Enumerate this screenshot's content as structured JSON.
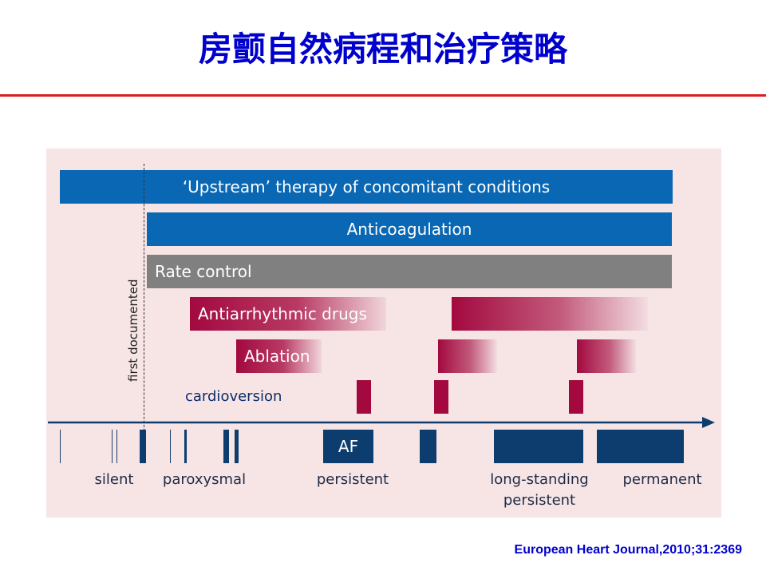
{
  "title": "房颤自然病程和治疗策略",
  "diagram": {
    "bars": {
      "upstream": "‘Upstream’ therapy of concomitant conditions",
      "anticoagulation": "Anticoagulation",
      "rate_control": "Rate control",
      "antiarrhythmic": "Antiarrhythmic drugs",
      "ablation": "Ablation",
      "cardioversion": "cardioversion"
    },
    "marker_label": "first documented",
    "timeline_block_label": "AF",
    "stages": {
      "silent": "silent",
      "paroxysmal": "paroxysmal",
      "persistent": "persistent",
      "long_standing": "long-standing persistent",
      "permanent": "permanent"
    }
  },
  "citation": "European Heart Journal,2010;31:2369",
  "colors": {
    "title": "#0000cc",
    "rule": "#dd1e1e",
    "therapy_blue": "#0a67b3",
    "rate_grey": "#808080",
    "drug_maroon": "#a3093f",
    "timeline_navy": "#0d3d6e",
    "panel_bg": "#f7e5e5"
  }
}
